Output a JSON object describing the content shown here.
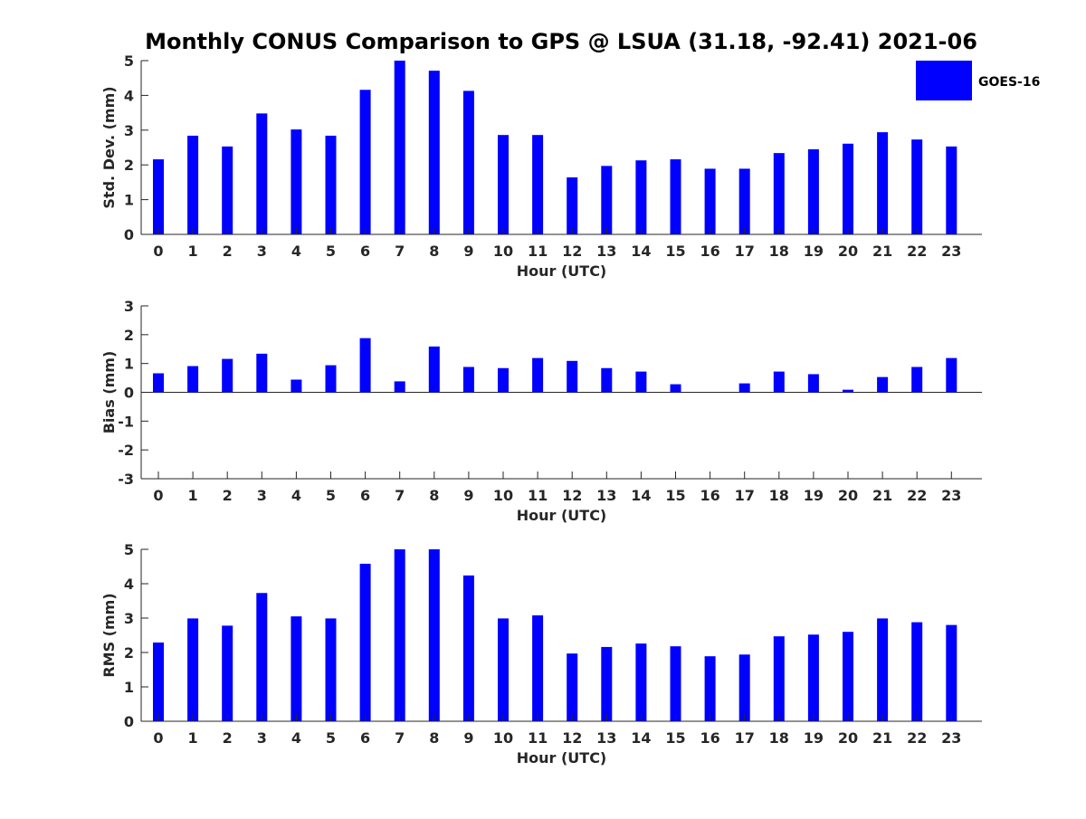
{
  "title": "Monthly CONUS Comparison to GPS @ LSUA (31.18, -92.41) 2021-06",
  "legend": {
    "label": "GOES-16",
    "color": "#0000ff",
    "placement": "top-right"
  },
  "colors": {
    "bar": "#0000ff",
    "axis": "#262626",
    "text": "#262626"
  },
  "chart_data": [
    {
      "type": "bar",
      "xlabel": "Hour (UTC)",
      "ylabel": "Std. Dev. (mm)",
      "categories": [
        "0",
        "1",
        "2",
        "3",
        "4",
        "5",
        "6",
        "7",
        "8",
        "9",
        "10",
        "11",
        "12",
        "13",
        "14",
        "15",
        "16",
        "17",
        "18",
        "19",
        "20",
        "21",
        "22",
        "23"
      ],
      "values": [
        2.16,
        2.84,
        2.53,
        3.48,
        3.02,
        2.84,
        4.16,
        5.0,
        4.71,
        4.13,
        2.86,
        2.86,
        1.64,
        1.97,
        2.13,
        2.16,
        1.89,
        1.89,
        2.34,
        2.45,
        2.61,
        2.94,
        2.73,
        2.53
      ],
      "ylim": [
        0,
        5
      ],
      "yticks": [
        0,
        1,
        2,
        3,
        4,
        5
      ],
      "grid": false
    },
    {
      "type": "bar",
      "xlabel": "Hour (UTC)",
      "ylabel": "Bias (mm)",
      "categories": [
        "0",
        "1",
        "2",
        "3",
        "4",
        "5",
        "6",
        "7",
        "8",
        "9",
        "10",
        "11",
        "12",
        "13",
        "14",
        "15",
        "16",
        "17",
        "18",
        "19",
        "20",
        "21",
        "22",
        "23"
      ],
      "values": [
        0.66,
        0.91,
        1.16,
        1.34,
        0.44,
        0.94,
        1.88,
        0.38,
        1.59,
        0.88,
        0.84,
        1.19,
        1.09,
        0.84,
        0.72,
        0.28,
        0.0,
        0.31,
        0.72,
        0.63,
        0.09,
        0.53,
        0.88,
        1.19
      ],
      "ylim": [
        -3,
        3
      ],
      "yticks": [
        -3,
        -2,
        -1,
        0,
        1,
        2,
        3
      ],
      "grid": false
    },
    {
      "type": "bar",
      "xlabel": "Hour (UTC)",
      "ylabel": "RMS (mm)",
      "categories": [
        "0",
        "1",
        "2",
        "3",
        "4",
        "5",
        "6",
        "7",
        "8",
        "9",
        "10",
        "11",
        "12",
        "13",
        "14",
        "15",
        "16",
        "17",
        "18",
        "19",
        "20",
        "21",
        "22",
        "23"
      ],
      "values": [
        2.29,
        2.99,
        2.78,
        3.73,
        3.05,
        2.99,
        4.58,
        5.0,
        5.0,
        4.24,
        2.99,
        3.08,
        1.97,
        2.16,
        2.26,
        2.18,
        1.89,
        1.94,
        2.47,
        2.52,
        2.6,
        2.99,
        2.88,
        2.8
      ],
      "ylim": [
        0,
        5
      ],
      "yticks": [
        0,
        1,
        2,
        3,
        4,
        5
      ],
      "grid": false
    }
  ]
}
